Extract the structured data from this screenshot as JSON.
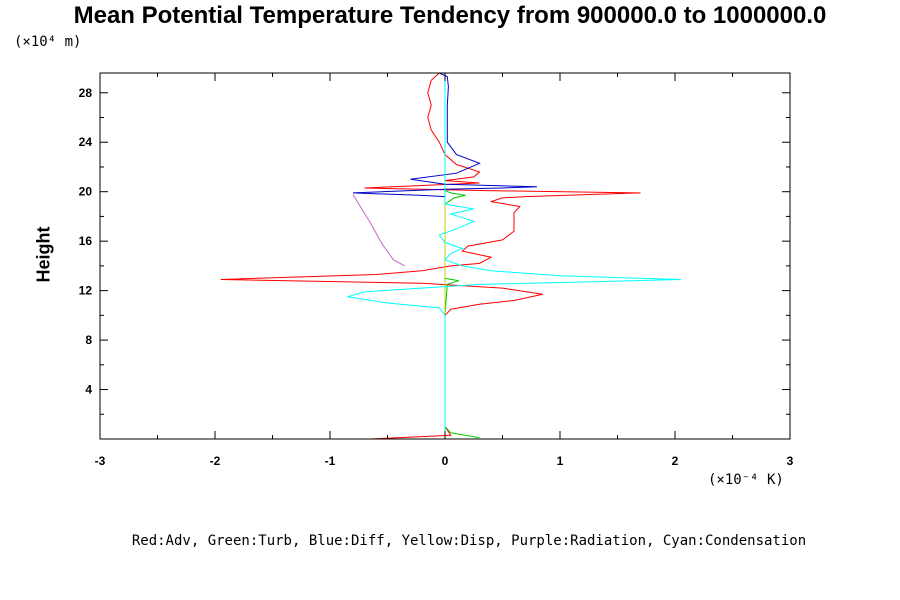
{
  "chart_data": {
    "type": "line",
    "title": "Mean Potential Temperature Tendency from 900000.0 to 1000000.0",
    "ylabel": "Height",
    "y_unit": "(×10⁴ m)",
    "x_unit": "(×10⁻⁴ K)",
    "xlim": [
      -3,
      3
    ],
    "ylim": [
      0,
      29.6
    ],
    "x_ticks": [
      -3,
      -2,
      -1,
      0,
      1,
      2,
      3
    ],
    "y_ticks": [
      4,
      8,
      12,
      16,
      20,
      24,
      28
    ],
    "grid": false,
    "legend_text": "Red:Adv, Green:Turb, Blue:Diff, Yellow:Disp, Purple:Radiation, Cyan:Condensation",
    "series": [
      {
        "name": "Adv",
        "color": "#ff0000",
        "points": [
          [
            -0.65,
            0.0
          ],
          [
            0.05,
            0.3
          ],
          [
            0.0,
            1.0
          ],
          [
            0.0,
            6.5
          ],
          [
            0.0,
            9.0
          ],
          [
            0.0,
            10.0
          ],
          [
            0.05,
            10.5
          ],
          [
            0.3,
            10.9
          ],
          [
            0.6,
            11.2
          ],
          [
            0.85,
            11.7
          ],
          [
            0.5,
            12.2
          ],
          [
            -0.2,
            12.6
          ],
          [
            -1.95,
            12.9
          ],
          [
            -0.6,
            13.3
          ],
          [
            -0.2,
            13.6
          ],
          [
            0.05,
            14.0
          ],
          [
            0.3,
            14.2
          ],
          [
            0.4,
            14.7
          ],
          [
            0.15,
            15.2
          ],
          [
            0.2,
            15.6
          ],
          [
            0.5,
            16.1
          ],
          [
            0.6,
            16.8
          ],
          [
            0.6,
            17.5
          ],
          [
            0.6,
            18.3
          ],
          [
            0.65,
            18.8
          ],
          [
            0.4,
            19.2
          ],
          [
            0.5,
            19.5
          ],
          [
            0.7,
            19.6
          ],
          [
            1.7,
            19.9
          ],
          [
            0.3,
            20.1
          ],
          [
            -0.7,
            20.3
          ],
          [
            0.3,
            20.7
          ],
          [
            0.0,
            20.9
          ],
          [
            0.25,
            21.2
          ],
          [
            0.3,
            21.6
          ],
          [
            0.1,
            22.2
          ],
          [
            0.0,
            23.0
          ],
          [
            -0.05,
            24.0
          ],
          [
            -0.12,
            25.0
          ],
          [
            -0.15,
            26.0
          ],
          [
            -0.12,
            27.0
          ],
          [
            -0.15,
            28.0
          ],
          [
            -0.12,
            29.0
          ],
          [
            -0.05,
            29.6
          ]
        ]
      },
      {
        "name": "Turb",
        "color": "#00cc00",
        "points": [
          [
            0.3,
            0.1
          ],
          [
            0.05,
            0.5
          ],
          [
            0.0,
            1.0
          ],
          [
            0.0,
            10.0
          ],
          [
            0.02,
            12.5
          ],
          [
            0.12,
            12.8
          ],
          [
            0.0,
            13.0
          ],
          [
            0.0,
            19.0
          ],
          [
            0.08,
            19.5
          ],
          [
            0.18,
            19.7
          ],
          [
            0.05,
            19.9
          ],
          [
            0.0,
            20.1
          ]
        ]
      },
      {
        "name": "Diff",
        "color": "#0000cc",
        "points": [
          [
            0.0,
            0.0
          ],
          [
            0.0,
            19.6
          ],
          [
            -0.2,
            19.7
          ],
          [
            -0.8,
            19.9
          ],
          [
            0.0,
            20.2
          ],
          [
            0.5,
            20.3
          ],
          [
            0.8,
            20.4
          ],
          [
            0.0,
            20.6
          ],
          [
            -0.3,
            21.0
          ],
          [
            0.1,
            21.5
          ],
          [
            0.3,
            22.3
          ],
          [
            0.1,
            23.0
          ],
          [
            0.02,
            24.0
          ],
          [
            0.02,
            25.5
          ],
          [
            0.02,
            27.0
          ],
          [
            0.03,
            28.5
          ],
          [
            0.02,
            29.3
          ],
          [
            -0.05,
            29.6
          ]
        ]
      },
      {
        "name": "Disp",
        "color": "#cccc00",
        "points": [
          [
            0.0,
            0.0
          ],
          [
            0.0,
            29.6
          ]
        ]
      },
      {
        "name": "Radiation",
        "color": "#cc66cc",
        "points": [
          [
            -0.35,
            14.0
          ],
          [
            -0.45,
            14.5
          ],
          [
            -0.55,
            15.8
          ],
          [
            -0.65,
            17.5
          ],
          [
            -0.75,
            19.0
          ],
          [
            -0.8,
            19.8
          ]
        ]
      },
      {
        "name": "Condensation",
        "color": "#00ffff",
        "points": [
          [
            0.0,
            0.0
          ],
          [
            0.0,
            10.0
          ],
          [
            -0.05,
            10.6
          ],
          [
            -0.5,
            11.0
          ],
          [
            -0.85,
            11.5
          ],
          [
            -0.7,
            11.9
          ],
          [
            -0.2,
            12.2
          ],
          [
            0.3,
            12.5
          ],
          [
            1.2,
            12.7
          ],
          [
            2.05,
            12.9
          ],
          [
            1.0,
            13.2
          ],
          [
            0.4,
            13.6
          ],
          [
            0.15,
            14.0
          ],
          [
            0.0,
            14.5
          ],
          [
            0.05,
            15.0
          ],
          [
            0.15,
            15.4
          ],
          [
            0.0,
            15.9
          ],
          [
            -0.05,
            16.5
          ],
          [
            0.1,
            17.0
          ],
          [
            0.25,
            17.6
          ],
          [
            0.05,
            18.2
          ],
          [
            0.25,
            18.6
          ],
          [
            0.0,
            19.0
          ],
          [
            0.0,
            29.6
          ]
        ]
      }
    ]
  }
}
